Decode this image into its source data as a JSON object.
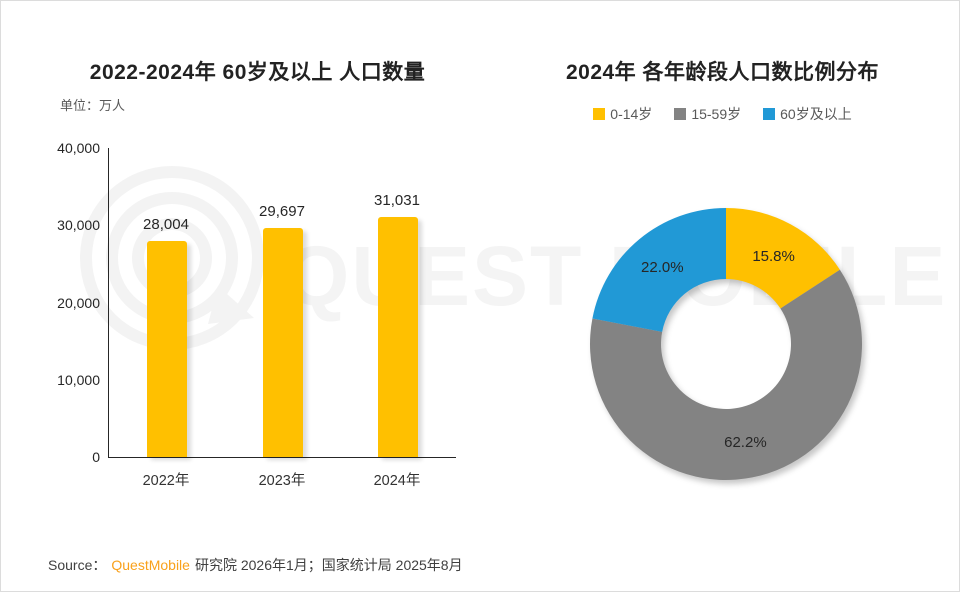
{
  "watermark": {
    "text": "QUEST MOBILE",
    "logo": "questmobile-ring-logo"
  },
  "chart_data": [
    {
      "type": "bar",
      "title": "2022-2024年 60岁及以上 人口数量",
      "unit_label": "单位：万人",
      "categories": [
        "2022年",
        "2023年",
        "2024年"
      ],
      "values": [
        28004,
        29697,
        31031
      ],
      "value_labels": [
        "28,004",
        "29,697",
        "31,031"
      ],
      "ylim": [
        0,
        40000
      ],
      "ytick_step": 10000,
      "ytick_labels": [
        "0",
        "10,000",
        "20,000",
        "30,000",
        "40,000"
      ],
      "bar_color": "#FFC000",
      "grid": false,
      "xlabel": "",
      "ylabel": ""
    },
    {
      "type": "pie",
      "subtype": "donut",
      "title": "2024年 各年龄段人口数比例分布",
      "legend_position": "top",
      "segments": [
        {
          "label": "0-14岁",
          "value": 15.8,
          "display": "15.8%",
          "color": "#FFC000"
        },
        {
          "label": "15-59岁",
          "value": 62.2,
          "display": "62.2%",
          "color": "#838383"
        },
        {
          "label": "60岁及以上",
          "value": 22.0,
          "display": "22.0%",
          "color": "#2199D6"
        }
      ],
      "order_clockwise_from_top": [
        "0-14岁",
        "15-59岁",
        "60岁及以上"
      ]
    }
  ],
  "source": {
    "prefix": "Source：",
    "brand": "QuestMobile",
    "suffix": "研究院 2026年1月；国家统计局 2025年8月"
  },
  "colors": {
    "accent_yellow": "#FFC000",
    "accent_gray": "#838383",
    "accent_blue": "#2199D6",
    "brand_orange": "#F9A11B",
    "title_text": "#222222",
    "muted_text": "#595959"
  }
}
